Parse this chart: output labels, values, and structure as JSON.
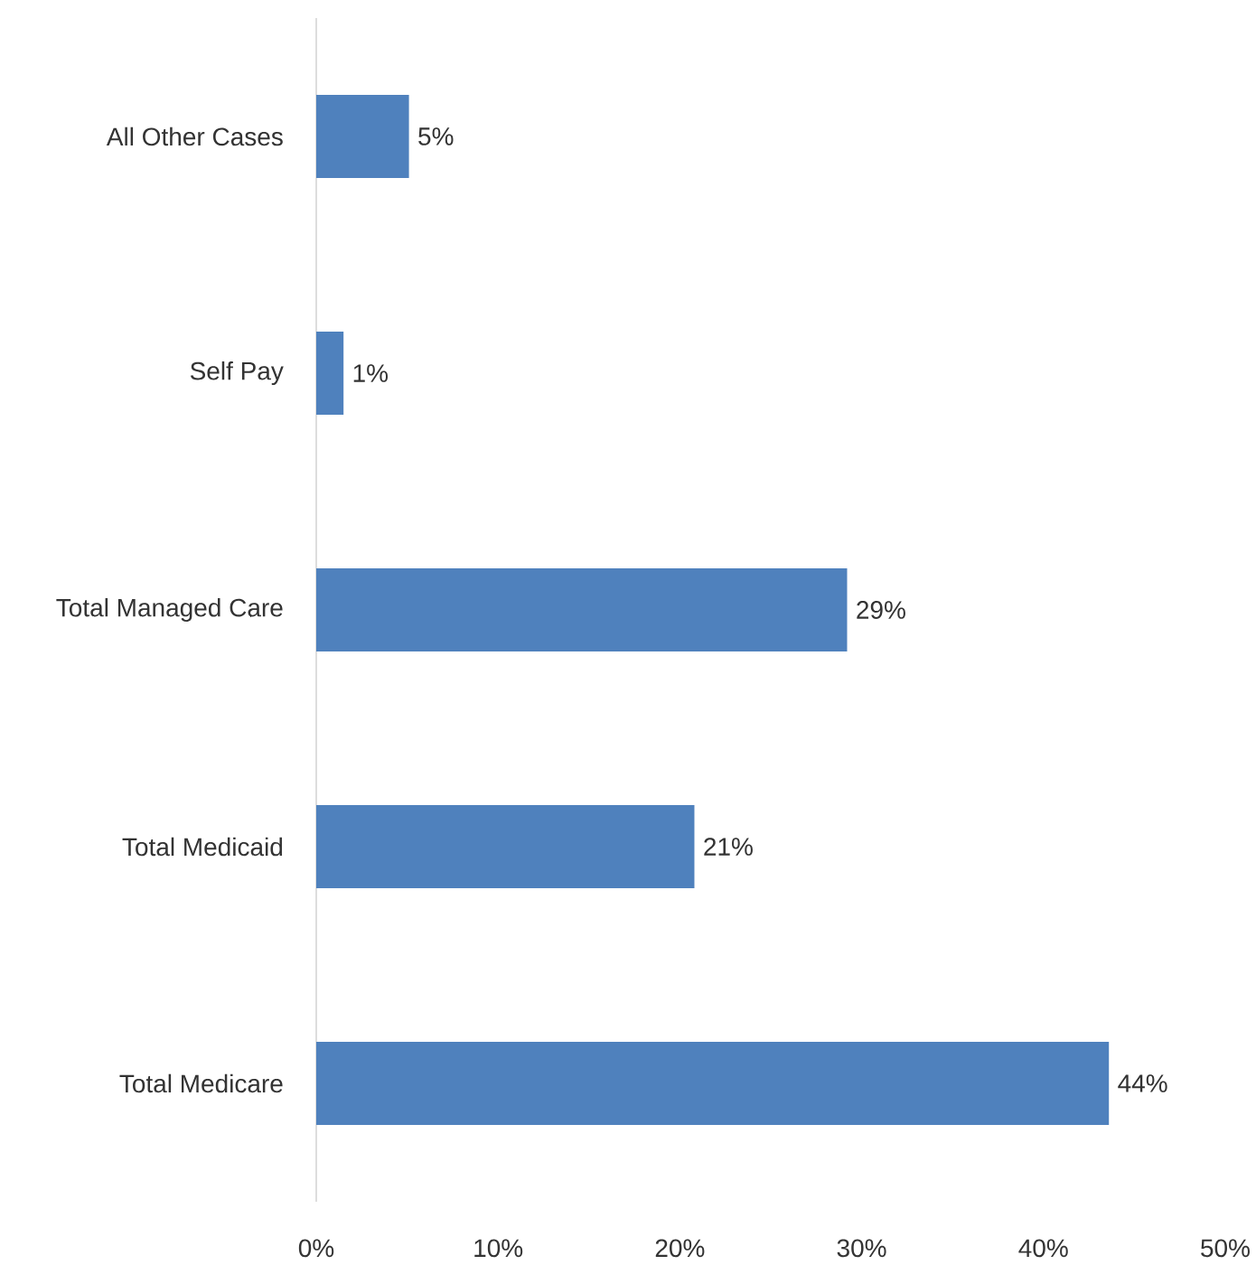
{
  "chart_data": {
    "type": "bar",
    "orientation": "horizontal",
    "categories": [
      "All Other Cases",
      "Self Pay",
      "Total Managed Care",
      "Total Medicaid",
      "Total Medicare"
    ],
    "values": [
      5.1,
      1.5,
      29.2,
      20.8,
      43.6
    ],
    "value_labels": [
      "5%",
      "1%",
      "29%",
      "21%",
      "44%"
    ],
    "color": "#4f81bd",
    "xlim": [
      0,
      50
    ],
    "xticks": [
      {
        "value": 0,
        "label": "0%"
      },
      {
        "value": 10,
        "label": "10%"
      },
      {
        "value": 20,
        "label": "20%"
      },
      {
        "value": 30,
        "label": "30%"
      },
      {
        "value": 40,
        "label": "40%"
      },
      {
        "value": 50,
        "label": "50%"
      }
    ],
    "grid": false
  }
}
